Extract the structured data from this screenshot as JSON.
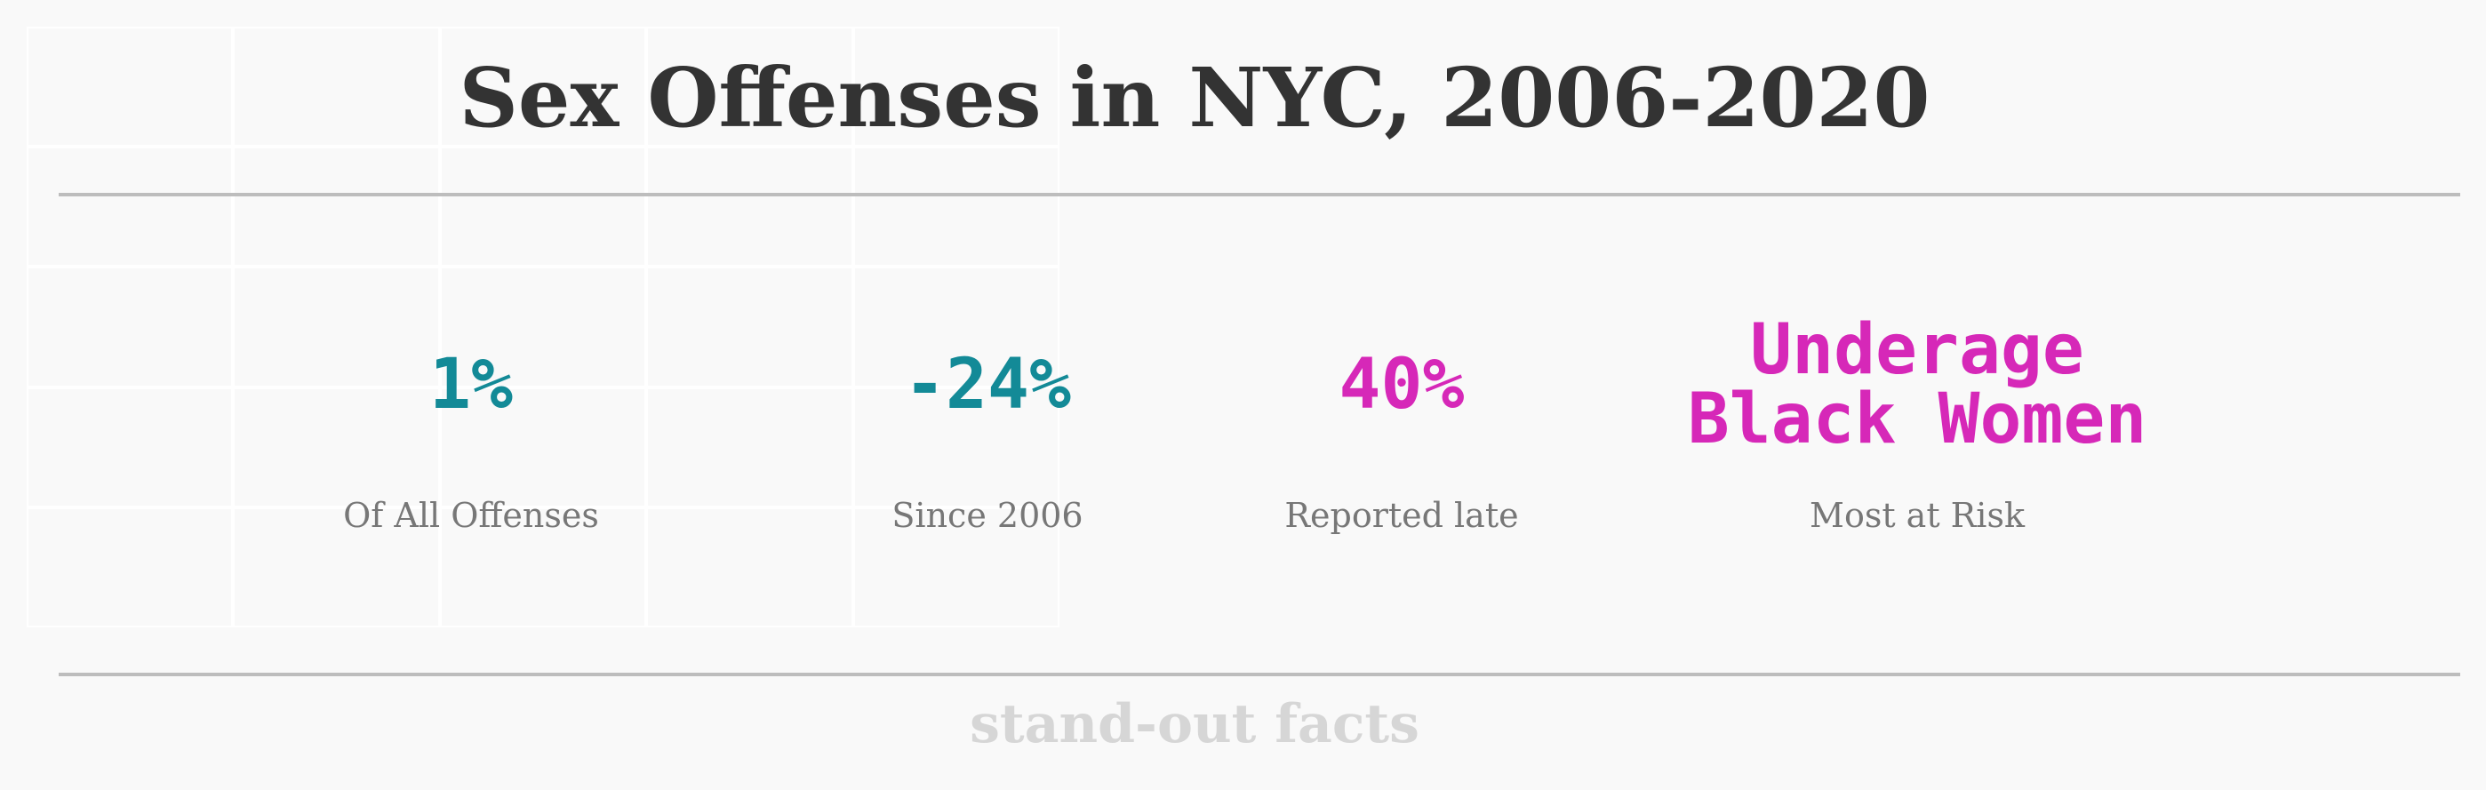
{
  "title": "Sex Offenses in NYC, 2006-2020",
  "facts": [
    {
      "value": "1%",
      "label": "Of All Offenses",
      "color": "#138a97"
    },
    {
      "value": "-24%",
      "label": "Since 2006",
      "color": "#138a97"
    },
    {
      "value": "40%",
      "label": "Reported late",
      "color": "#d628b8"
    },
    {
      "value": "Underage\nBlack Women",
      "label": "Most at Risk",
      "color": "#d628b8"
    }
  ],
  "footer": "stand-out facts",
  "colors": {
    "background": "#f9f9f9",
    "title": "#333333",
    "label": "#777777",
    "rule": "#bdbdbd",
    "footer": "#d6d6d6",
    "teal": "#138a97",
    "magenta": "#d628b8"
  }
}
